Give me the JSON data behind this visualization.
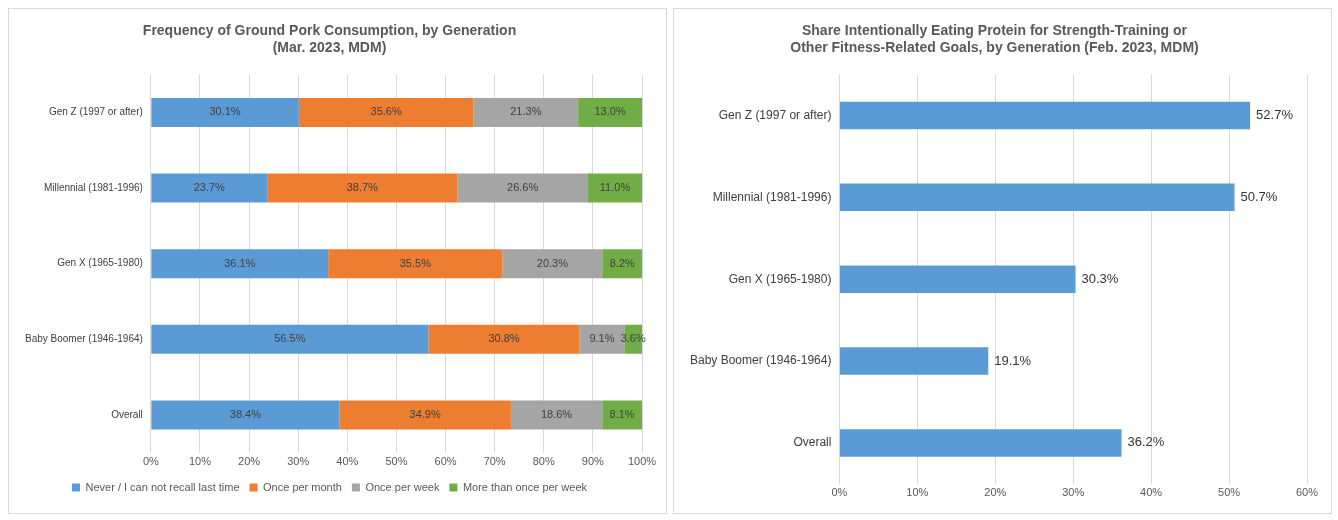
{
  "chart_data": [
    {
      "type": "bar",
      "orientation": "horizontal",
      "stacked": true,
      "title": "Frequency of Ground Pork Consumption, by Generation\n(Mar. 2023, MDM)",
      "categories": [
        "Gen Z (1997 or after)",
        "Millennial (1981-1996)",
        "Gen X (1965-1980)",
        "Baby Boomer (1946-1964)",
        "Overall"
      ],
      "series": [
        {
          "name": "Never / I can not recall last time",
          "color": "#5b9bd5",
          "values": [
            30.1,
            23.7,
            36.1,
            56.5,
            38.4
          ],
          "value_labels": [
            "30.1%",
            "23.7%",
            "36.1%",
            "56.5%",
            "38.4%"
          ]
        },
        {
          "name": "Once per month",
          "color": "#ed7d31",
          "values": [
            35.6,
            38.7,
            35.5,
            30.8,
            34.9
          ],
          "value_labels": [
            "35.6%",
            "38.7%",
            "35.5%",
            "30.8%",
            "34.9%"
          ]
        },
        {
          "name": "Once per week",
          "color": "#a5a5a5",
          "values": [
            21.3,
            26.6,
            20.3,
            9.1,
            18.6
          ],
          "value_labels": [
            "21.3%",
            "26.6%",
            "20.3%",
            "9.1%",
            "18.6%"
          ]
        },
        {
          "name": "More than once per week",
          "color": "#70ad47",
          "values": [
            13.0,
            11.0,
            8.2,
            3.6,
            8.1
          ],
          "value_labels": [
            "13.0%",
            "11.0%",
            "8.2%",
            "3.6%",
            "8.1%"
          ]
        }
      ],
      "xlim": [
        0,
        100
      ],
      "xticks": [
        {
          "value": 0,
          "label": "0%"
        },
        {
          "value": 10,
          "label": "10%"
        },
        {
          "value": 20,
          "label": "20%"
        },
        {
          "value": 30,
          "label": "30%"
        },
        {
          "value": 40,
          "label": "40%"
        },
        {
          "value": 50,
          "label": "50%"
        },
        {
          "value": 60,
          "label": "60%"
        },
        {
          "value": 70,
          "label": "70%"
        },
        {
          "value": 80,
          "label": "80%"
        },
        {
          "value": 90,
          "label": "90%"
        },
        {
          "value": 100,
          "label": "100%"
        }
      ],
      "grid": "x",
      "legend": "bottom"
    },
    {
      "type": "bar",
      "orientation": "horizontal",
      "title": "Share Intentionally Eating Protein for Strength-Training or\nOther Fitness-Related Goals, by Generation (Feb. 2023, MDM)",
      "categories": [
        "Gen Z (1997 or after)",
        "Millennial (1981-1996)",
        "Gen X (1965-1980)",
        "Baby Boomer (1946-1964)",
        "Overall"
      ],
      "values": [
        52.7,
        50.7,
        30.3,
        19.1,
        36.2
      ],
      "color": "#5b9bd5",
      "value_labels": [
        "52.7%",
        "50.7%",
        "30.3%",
        "19.1%",
        "36.2%"
      ],
      "xlim": [
        0,
        60
      ],
      "xticks": [
        {
          "value": 0,
          "label": "0%"
        },
        {
          "value": 10,
          "label": "10%"
        },
        {
          "value": 20,
          "label": "20%"
        },
        {
          "value": 30,
          "label": "30%"
        },
        {
          "value": 40,
          "label": "40%"
        },
        {
          "value": 50,
          "label": "50%"
        },
        {
          "value": 60,
          "label": "60%"
        }
      ],
      "grid": "x"
    }
  ]
}
